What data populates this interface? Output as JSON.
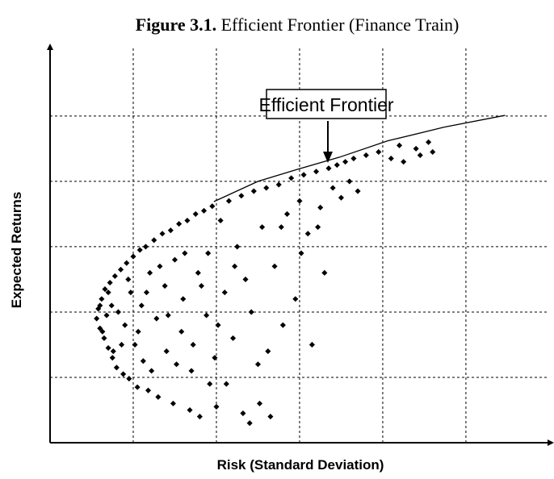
{
  "chart_data": {
    "type": "scatter",
    "figure_label": "Figure 3.1.",
    "title": "Efficient Frontier (Finance Train)",
    "x_label": "Risk (Standard Deviation)",
    "y_label": "Expected Returns",
    "annotation": "Efficient Frontier",
    "color": "#000000",
    "grid": true,
    "xlim": [
      0,
      6.03
    ],
    "ylim": [
      0,
      6.06
    ],
    "xticks": [
      1,
      2,
      3,
      4,
      5
    ],
    "yticks": [
      1,
      2,
      3,
      4,
      5
    ],
    "frontier": {
      "x": [
        1.97,
        2.5,
        2.99,
        3.48,
        4.06,
        4.74,
        5.47
      ],
      "values": [
        3.69,
        4.0,
        4.19,
        4.37,
        4.62,
        4.83,
        5.01
      ]
    },
    "x": [
      0.56,
      0.58,
      0.6,
      0.62,
      0.65,
      0.66,
      0.7,
      0.72,
      0.75,
      0.78,
      0.8,
      0.82,
      0.85,
      0.88,
      0.9,
      0.92,
      0.95,
      0.97,
      1.0,
      1.02,
      1.05,
      1.08,
      1.1,
      1.12,
      1.15,
      1.18,
      1.2,
      1.25,
      1.28,
      1.3,
      1.35,
      1.38,
      1.4,
      1.45,
      1.48,
      1.5,
      1.55,
      1.58,
      1.6,
      1.65,
      1.68,
      1.7,
      1.75,
      1.78,
      1.8,
      1.85,
      1.88,
      1.9,
      1.95,
      1.98,
      2.0,
      2.05,
      2.1,
      2.12,
      2.15,
      2.2,
      2.25,
      2.3,
      2.32,
      2.35,
      2.4,
      2.45,
      2.5,
      2.55,
      2.6,
      2.65,
      2.7,
      2.75,
      2.8,
      2.85,
      2.9,
      2.95,
      3.0,
      3.05,
      3.1,
      3.15,
      3.2,
      3.25,
      3.3,
      3.35,
      3.4,
      3.45,
      3.5,
      3.55,
      3.6,
      3.65,
      3.7,
      3.8,
      3.95,
      4.1,
      4.2,
      4.25,
      4.4,
      4.55,
      4.6,
      4.45,
      0.68,
      0.74,
      0.86,
      0.94,
      1.06,
      1.16,
      1.22,
      1.32,
      1.42,
      1.52,
      1.62,
      1.72,
      1.82,
      1.92,
      2.02,
      2.22,
      2.42,
      2.52,
      2.62,
      2.78,
      3.02,
      3.22,
      0.6,
      0.63,
      0.7,
      0.76
    ],
    "values": [
      1.9,
      2.05,
      1.75,
      2.2,
      1.6,
      2.35,
      1.45,
      2.45,
      1.3,
      2.55,
      1.15,
      2.0,
      2.65,
      1.05,
      1.8,
      2.75,
      0.98,
      2.3,
      2.85,
      1.5,
      0.85,
      2.95,
      2.1,
      1.25,
      3.0,
      0.8,
      2.6,
      3.1,
      1.9,
      0.7,
      3.2,
      2.4,
      1.4,
      3.25,
      0.6,
      2.8,
      3.35,
      1.7,
      2.2,
      3.4,
      0.5,
      1.1,
      3.5,
      2.6,
      0.4,
      3.55,
      1.95,
      2.9,
      3.62,
      1.3,
      0.55,
      3.4,
      2.3,
      0.9,
      3.7,
      1.6,
      3.0,
      3.78,
      0.45,
      2.5,
      0.3,
      3.85,
      1.2,
      3.3,
      3.9,
      0.4,
      2.7,
      3.95,
      1.8,
      3.5,
      4.05,
      2.2,
      3.7,
      4.1,
      3.2,
      1.5,
      4.15,
      3.6,
      2.6,
      4.2,
      3.9,
      4.25,
      3.75,
      4.3,
      4.0,
      4.35,
      3.85,
      4.4,
      4.45,
      4.35,
      4.55,
      4.3,
      4.5,
      4.6,
      4.45,
      4.4,
      1.95,
      2.1,
      1.5,
      2.5,
      1.7,
      2.3,
      1.1,
      2.7,
      1.95,
      1.2,
      2.9,
      1.5,
      2.4,
      0.9,
      1.8,
      2.7,
      2.0,
      0.6,
      1.4,
      3.3,
      2.9,
      3.3,
      2.1,
      1.7,
      2.3,
      1.4
    ]
  }
}
